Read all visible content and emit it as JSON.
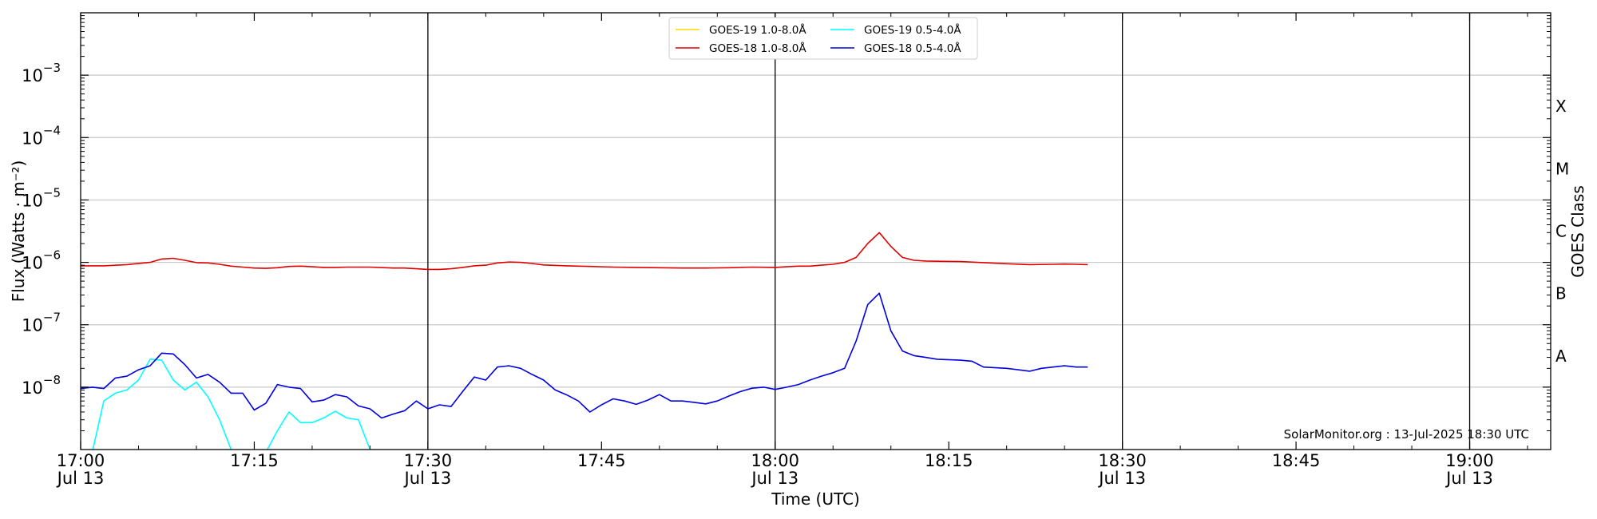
{
  "chart_data": {
    "type": "line",
    "xlabel": "Time (UTC)",
    "ylabel": "Flux (Watts · m⁻²)",
    "y2label": "GOES Class",
    "credit": "SolarMonitor.org : 13-Jul-2025 18:30 UTC",
    "yscale": "log",
    "ylim": [
      1e-09,
      0.01
    ],
    "xlim": [
      "17:00",
      "19:07"
    ],
    "x_ticks": [
      {
        "t": "17:00",
        "label": "17:00",
        "sub": "Jul 13"
      },
      {
        "t": "17:15",
        "label": "17:15",
        "sub": ""
      },
      {
        "t": "17:30",
        "label": "17:30",
        "sub": "Jul 13"
      },
      {
        "t": "17:45",
        "label": "17:45",
        "sub": ""
      },
      {
        "t": "18:00",
        "label": "18:00",
        "sub": "Jul 13"
      },
      {
        "t": "18:15",
        "label": "18:15",
        "sub": ""
      },
      {
        "t": "18:30",
        "label": "18:30",
        "sub": "Jul 13"
      },
      {
        "t": "18:45",
        "label": "18:45",
        "sub": ""
      },
      {
        "t": "19:00",
        "label": "19:00",
        "sub": "Jul 13"
      }
    ],
    "day_lines": [
      "17:30",
      "18:00",
      "18:30",
      "19:00"
    ],
    "y_ticks": [
      {
        "exp": -8,
        "label": "10",
        "sup": "−8"
      },
      {
        "exp": -7,
        "label": "10",
        "sup": "−7"
      },
      {
        "exp": -6,
        "label": "10",
        "sup": "−6"
      },
      {
        "exp": -5,
        "label": "10",
        "sup": "−5"
      },
      {
        "exp": -4,
        "label": "10",
        "sup": "−4"
      },
      {
        "exp": -3,
        "label": "10",
        "sup": "−3"
      }
    ],
    "classes": [
      {
        "label": "A",
        "exp": -7.5
      },
      {
        "label": "B",
        "exp": -6.5
      },
      {
        "label": "C",
        "exp": -5.5
      },
      {
        "label": "M",
        "exp": -4.5
      },
      {
        "label": "X",
        "exp": -3.5
      }
    ],
    "grid": true,
    "legend_position": "top-center",
    "series": [
      {
        "name": "GOES-19 1.0-8.0Å",
        "color": "#FFD700",
        "points": []
      },
      {
        "name": "GOES-18 1.0-8.0Å",
        "color": "#E00000",
        "points": [
          [
            "17:00",
            8.8e-07
          ],
          [
            "17:02",
            8.8e-07
          ],
          [
            "17:04",
            9.2e-07
          ],
          [
            "17:06",
            1e-06
          ],
          [
            "17:07",
            1.13e-06
          ],
          [
            "17:08",
            1.16e-06
          ],
          [
            "17:09",
            1.08e-06
          ],
          [
            "17:10",
            9.9e-07
          ],
          [
            "17:11",
            9.8e-07
          ],
          [
            "17:12",
            9.3e-07
          ],
          [
            "17:13",
            8.7e-07
          ],
          [
            "17:14",
            8.4e-07
          ],
          [
            "17:15",
            8.1e-07
          ],
          [
            "17:16",
            8e-07
          ],
          [
            "17:17",
            8.2e-07
          ],
          [
            "17:18",
            8.6e-07
          ],
          [
            "17:19",
            8.7e-07
          ],
          [
            "17:20",
            8.5e-07
          ],
          [
            "17:21",
            8.3e-07
          ],
          [
            "17:22",
            8.3e-07
          ],
          [
            "17:23",
            8.4e-07
          ],
          [
            "17:25",
            8.4e-07
          ],
          [
            "17:27",
            8.1e-07
          ],
          [
            "17:28",
            8.1e-07
          ],
          [
            "17:29",
            7.9e-07
          ],
          [
            "17:30",
            7.7e-07
          ],
          [
            "17:31",
            7.7e-07
          ],
          [
            "17:32",
            7.9e-07
          ],
          [
            "17:33",
            8.3e-07
          ],
          [
            "17:34",
            8.8e-07
          ],
          [
            "17:35",
            9e-07
          ],
          [
            "17:36",
            9.8e-07
          ],
          [
            "17:37",
            1.01e-06
          ],
          [
            "17:38",
            1e-06
          ],
          [
            "17:39",
            9.6e-07
          ],
          [
            "17:40",
            9.1e-07
          ],
          [
            "17:42",
            8.8e-07
          ],
          [
            "17:44",
            8.6e-07
          ],
          [
            "17:46",
            8.4e-07
          ],
          [
            "17:48",
            8.3e-07
          ],
          [
            "17:50",
            8.2e-07
          ],
          [
            "17:52",
            8.1e-07
          ],
          [
            "17:54",
            8.1e-07
          ],
          [
            "17:56",
            8.2e-07
          ],
          [
            "17:58",
            8.4e-07
          ],
          [
            "18:00",
            8.3e-07
          ],
          [
            "18:01",
            8.5e-07
          ],
          [
            "18:02",
            8.7e-07
          ],
          [
            "18:03",
            8.7e-07
          ],
          [
            "18:04",
            9e-07
          ],
          [
            "18:05",
            9.3e-07
          ],
          [
            "18:06",
            1e-06
          ],
          [
            "18:07",
            1.2e-06
          ],
          [
            "18:08",
            2e-06
          ],
          [
            "18:09",
            3e-06
          ],
          [
            "18:10",
            1.8e-06
          ],
          [
            "18:11",
            1.2e-06
          ],
          [
            "18:12",
            1.08e-06
          ],
          [
            "18:13",
            1.05e-06
          ],
          [
            "18:14",
            1.04e-06
          ],
          [
            "18:16",
            1.03e-06
          ],
          [
            "18:18",
            9.9e-07
          ],
          [
            "18:20",
            9.5e-07
          ],
          [
            "18:22",
            9.2e-07
          ],
          [
            "18:24",
            9.3e-07
          ],
          [
            "18:25",
            9.4e-07
          ],
          [
            "18:26",
            9.3e-07
          ],
          [
            "18:27",
            9.2e-07
          ]
        ]
      },
      {
        "name": "GOES-19 0.5-4.0Å",
        "color": "#00FFFF",
        "points": [
          [
            "17:00",
            6e-10
          ],
          [
            "17:01",
            9e-10
          ],
          [
            "17:02",
            6e-09
          ],
          [
            "17:03",
            8e-09
          ],
          [
            "17:04",
            9e-09
          ],
          [
            "17:05",
            1.3e-08
          ],
          [
            "17:06",
            2.8e-08
          ],
          [
            "17:07",
            2.7e-08
          ],
          [
            "17:08",
            1.3e-08
          ],
          [
            "17:09",
            9e-09
          ],
          [
            "17:10",
            1.2e-08
          ],
          [
            "17:11",
            7e-09
          ],
          [
            "17:12",
            3e-09
          ],
          [
            "17:13",
            1e-09
          ],
          [
            "17:14",
            7e-10
          ],
          [
            "17:15",
            7e-10
          ],
          [
            "17:16",
            9e-10
          ],
          [
            "17:17",
            2e-09
          ],
          [
            "17:18",
            4e-09
          ],
          [
            "17:19",
            2.7e-09
          ],
          [
            "17:20",
            2.7e-09
          ],
          [
            "17:21",
            3.2e-09
          ],
          [
            "17:22",
            4.1e-09
          ],
          [
            "17:23",
            3.2e-09
          ],
          [
            "17:24",
            3e-09
          ],
          [
            "17:25",
            1e-09
          ],
          [
            "17:26",
            9e-10
          ]
        ]
      },
      {
        "name": "GOES-18 0.5-4.0Å",
        "color": "#0000E0",
        "points": [
          [
            "17:00",
            9.5e-09
          ],
          [
            "17:01",
            1e-08
          ],
          [
            "17:02",
            9.5e-09
          ],
          [
            "17:03",
            1.4e-08
          ],
          [
            "17:04",
            1.5e-08
          ],
          [
            "17:05",
            1.9e-08
          ],
          [
            "17:06",
            2.2e-08
          ],
          [
            "17:07",
            3.5e-08
          ],
          [
            "17:08",
            3.4e-08
          ],
          [
            "17:09",
            2.3e-08
          ],
          [
            "17:10",
            1.4e-08
          ],
          [
            "17:11",
            1.6e-08
          ],
          [
            "17:12",
            1.2e-08
          ],
          [
            "17:13",
            8e-09
          ],
          [
            "17:14",
            8e-09
          ],
          [
            "17:15",
            4.3e-09
          ],
          [
            "17:16",
            5.5e-09
          ],
          [
            "17:17",
            1.1e-08
          ],
          [
            "17:18",
            1e-08
          ],
          [
            "17:19",
            9.5e-09
          ],
          [
            "17:20",
            5.8e-09
          ],
          [
            "17:21",
            6.2e-09
          ],
          [
            "17:22",
            7.6e-09
          ],
          [
            "17:23",
            7e-09
          ],
          [
            "17:24",
            5e-09
          ],
          [
            "17:25",
            4.5e-09
          ],
          [
            "17:26",
            3.2e-09
          ],
          [
            "17:27",
            3.7e-09
          ],
          [
            "17:28",
            4.2e-09
          ],
          [
            "17:29",
            6e-09
          ],
          [
            "17:30",
            4.5e-09
          ],
          [
            "17:31",
            5.2e-09
          ],
          [
            "17:32",
            4.9e-09
          ],
          [
            "17:33",
            8.5e-09
          ],
          [
            "17:34",
            1.45e-08
          ],
          [
            "17:35",
            1.3e-08
          ],
          [
            "17:36",
            2.1e-08
          ],
          [
            "17:37",
            2.2e-08
          ],
          [
            "17:38",
            2e-08
          ],
          [
            "17:39",
            1.6e-08
          ],
          [
            "17:40",
            1.3e-08
          ],
          [
            "17:41",
            9e-09
          ],
          [
            "17:42",
            7.5e-09
          ],
          [
            "17:43",
            6e-09
          ],
          [
            "17:44",
            4e-09
          ],
          [
            "17:45",
            5.2e-09
          ],
          [
            "17:46",
            6.5e-09
          ],
          [
            "17:47",
            6e-09
          ],
          [
            "17:48",
            5.3e-09
          ],
          [
            "17:49",
            6.2e-09
          ],
          [
            "17:50",
            7.6e-09
          ],
          [
            "17:51",
            6e-09
          ],
          [
            "17:52",
            6e-09
          ],
          [
            "17:53",
            5.7e-09
          ],
          [
            "17:54",
            5.4e-09
          ],
          [
            "17:55",
            6e-09
          ],
          [
            "17:56",
            7.2e-09
          ],
          [
            "17:57",
            8.5e-09
          ],
          [
            "17:58",
            9.6e-09
          ],
          [
            "17:59",
            1e-08
          ],
          [
            "18:00",
            9.2e-09
          ],
          [
            "18:01",
            1e-08
          ],
          [
            "18:02",
            1.1e-08
          ],
          [
            "18:03",
            1.3e-08
          ],
          [
            "18:04",
            1.5e-08
          ],
          [
            "18:05",
            1.7e-08
          ],
          [
            "18:06",
            2e-08
          ],
          [
            "18:07",
            5.5e-08
          ],
          [
            "18:08",
            2.1e-07
          ],
          [
            "18:09",
            3.2e-07
          ],
          [
            "18:10",
            8e-08
          ],
          [
            "18:11",
            3.8e-08
          ],
          [
            "18:12",
            3.2e-08
          ],
          [
            "18:13",
            3e-08
          ],
          [
            "18:14",
            2.8e-08
          ],
          [
            "18:16",
            2.7e-08
          ],
          [
            "18:17",
            2.6e-08
          ],
          [
            "18:18",
            2.1e-08
          ],
          [
            "18:20",
            2e-08
          ],
          [
            "18:22",
            1.8e-08
          ],
          [
            "18:23",
            2e-08
          ],
          [
            "18:24",
            2.1e-08
          ],
          [
            "18:25",
            2.2e-08
          ],
          [
            "18:26",
            2.1e-08
          ],
          [
            "18:27",
            2.1e-08
          ]
        ]
      }
    ]
  }
}
